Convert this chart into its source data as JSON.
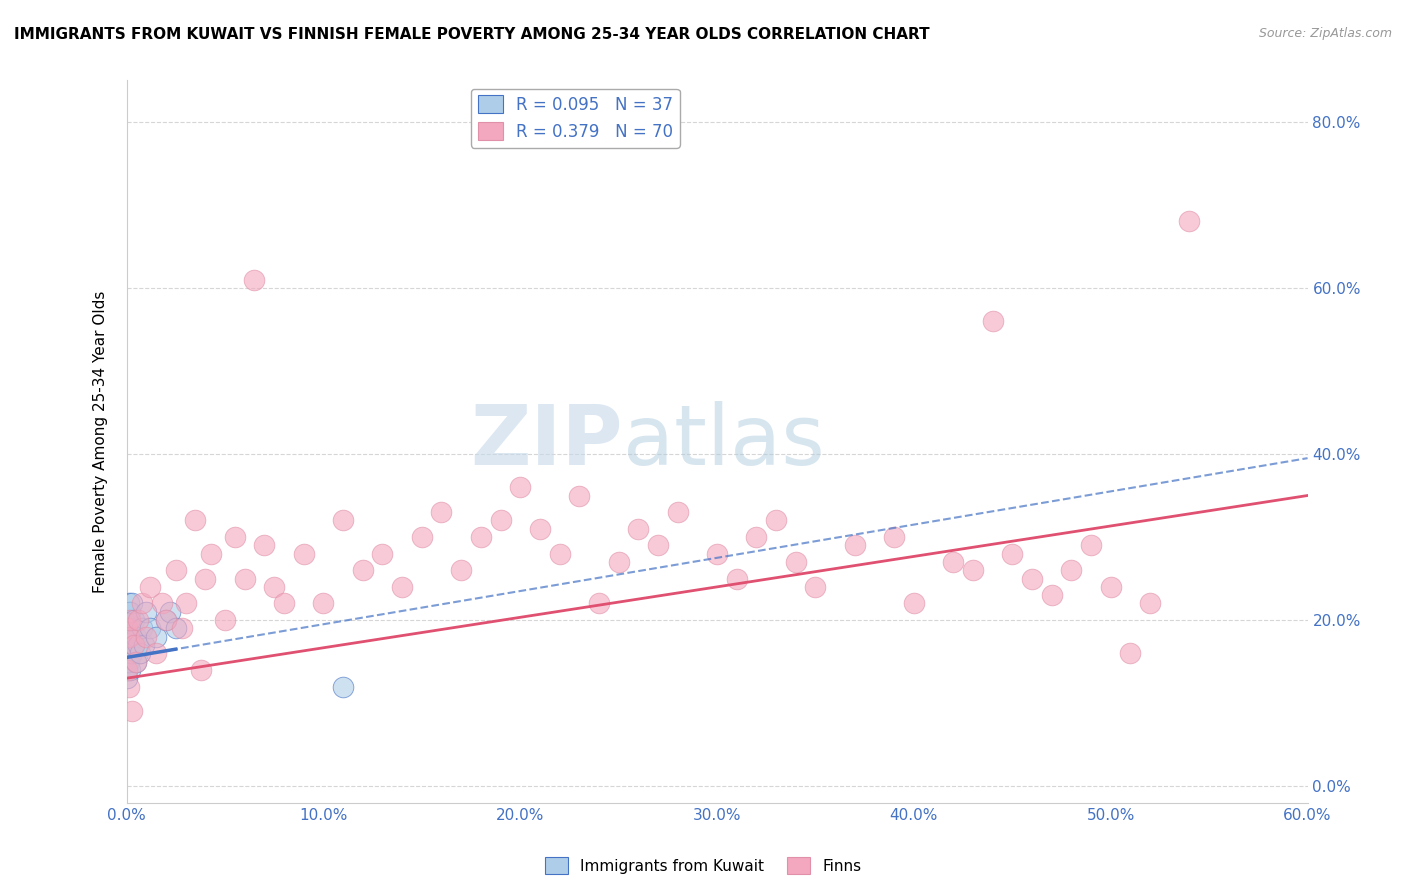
{
  "title": "IMMIGRANTS FROM KUWAIT VS FINNISH FEMALE POVERTY AMONG 25-34 YEAR OLDS CORRELATION CHART",
  "source": "Source: ZipAtlas.com",
  "xlim": [
    0.0,
    0.6
  ],
  "ylim": [
    -0.02,
    0.85
  ],
  "ylabel": "Female Poverty Among 25-34 Year Olds",
  "legend_label1": "Immigrants from Kuwait",
  "legend_label2": "Finns",
  "r1": 0.095,
  "n1": 37,
  "r2": 0.379,
  "n2": 70,
  "color1": "#aecde8",
  "color2": "#f4a8bf",
  "trendline1_color": "#4472c4",
  "trendline2_color": "#e05070",
  "watermark_zip": "ZIP",
  "watermark_atlas": "atlas",
  "watermark_color_zip": "#c5d8ea",
  "watermark_color_atlas": "#b0cce0",
  "blue_x": [
    0.0,
    0.0,
    0.0,
    0.0,
    0.0,
    0.0,
    0.0,
    0.0,
    0.001,
    0.001,
    0.001,
    0.001,
    0.001,
    0.001,
    0.002,
    0.002,
    0.002,
    0.002,
    0.002,
    0.003,
    0.003,
    0.003,
    0.004,
    0.004,
    0.005,
    0.005,
    0.006,
    0.007,
    0.008,
    0.009,
    0.01,
    0.012,
    0.015,
    0.02,
    0.022,
    0.025,
    0.11
  ],
  "blue_y": [
    0.13,
    0.14,
    0.15,
    0.16,
    0.17,
    0.18,
    0.19,
    0.2,
    0.15,
    0.17,
    0.18,
    0.2,
    0.21,
    0.22,
    0.14,
    0.16,
    0.18,
    0.19,
    0.21,
    0.16,
    0.18,
    0.22,
    0.17,
    0.2,
    0.15,
    0.18,
    0.17,
    0.16,
    0.19,
    0.17,
    0.21,
    0.19,
    0.18,
    0.2,
    0.21,
    0.19,
    0.12
  ],
  "pink_x": [
    0.0,
    0.0,
    0.001,
    0.001,
    0.002,
    0.003,
    0.004,
    0.005,
    0.006,
    0.008,
    0.01,
    0.012,
    0.015,
    0.018,
    0.02,
    0.025,
    0.028,
    0.03,
    0.035,
    0.038,
    0.04,
    0.043,
    0.05,
    0.055,
    0.06,
    0.065,
    0.07,
    0.075,
    0.08,
    0.09,
    0.1,
    0.11,
    0.12,
    0.13,
    0.14,
    0.15,
    0.16,
    0.17,
    0.18,
    0.19,
    0.2,
    0.21,
    0.22,
    0.23,
    0.24,
    0.25,
    0.26,
    0.27,
    0.28,
    0.3,
    0.31,
    0.32,
    0.33,
    0.34,
    0.35,
    0.37,
    0.39,
    0.4,
    0.42,
    0.43,
    0.44,
    0.45,
    0.46,
    0.47,
    0.48,
    0.49,
    0.5,
    0.51,
    0.52,
    0.54
  ],
  "pink_y": [
    0.14,
    0.19,
    0.12,
    0.18,
    0.2,
    0.09,
    0.17,
    0.15,
    0.2,
    0.22,
    0.18,
    0.24,
    0.16,
    0.22,
    0.2,
    0.26,
    0.19,
    0.22,
    0.32,
    0.14,
    0.25,
    0.28,
    0.2,
    0.3,
    0.25,
    0.61,
    0.29,
    0.24,
    0.22,
    0.28,
    0.22,
    0.32,
    0.26,
    0.28,
    0.24,
    0.3,
    0.33,
    0.26,
    0.3,
    0.32,
    0.36,
    0.31,
    0.28,
    0.35,
    0.22,
    0.27,
    0.31,
    0.29,
    0.33,
    0.28,
    0.25,
    0.3,
    0.32,
    0.27,
    0.24,
    0.29,
    0.3,
    0.22,
    0.27,
    0.26,
    0.56,
    0.28,
    0.25,
    0.23,
    0.26,
    0.29,
    0.24,
    0.16,
    0.22,
    0.68
  ],
  "ytick_vals": [
    0.0,
    0.2,
    0.4,
    0.6,
    0.8
  ],
  "xtick_vals": [
    0.0,
    0.1,
    0.2,
    0.3,
    0.4,
    0.5,
    0.6
  ]
}
